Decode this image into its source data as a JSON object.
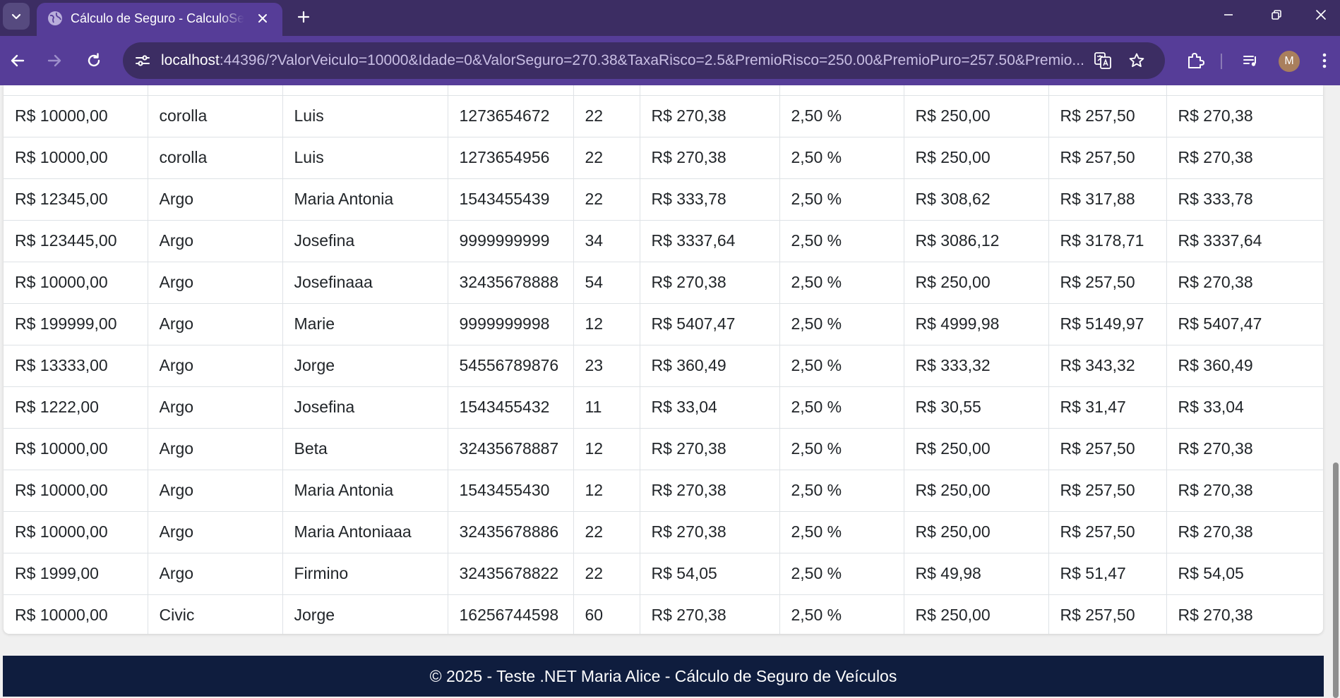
{
  "browser": {
    "tab_title": "Cálculo de Seguro - CalculoSeguro",
    "url_host": "localhost",
    "url_rest": ":44396/?ValorVeiculo=10000&Idade=0&ValorSeguro=270.38&TaxaRisco=2.5&PremioRisco=250.00&PremioPuro=257.50&Premio...",
    "avatar_letter": "M",
    "icons": [
      "chevron-down-icon",
      "globe-icon",
      "close-icon",
      "plus-icon",
      "minimize-icon",
      "restore-icon",
      "close-icon",
      "back-arrow-icon",
      "forward-arrow-icon",
      "reload-icon",
      "site-info-icon",
      "translate-icon",
      "star-icon",
      "extensions-icon",
      "media-icon",
      "more-vertical-icon"
    ]
  },
  "table": {
    "rows": [
      [
        "R$ 10000,00",
        "corolla",
        "Luis",
        "1273654672",
        "22",
        "R$ 270,38",
        "2,50 %",
        "R$ 250,00",
        "R$ 257,50",
        "R$ 270,38"
      ],
      [
        "R$ 10000,00",
        "corolla",
        "Luis",
        "1273654956",
        "22",
        "R$ 270,38",
        "2,50 %",
        "R$ 250,00",
        "R$ 257,50",
        "R$ 270,38"
      ],
      [
        "R$ 12345,00",
        "Argo",
        "Maria Antonia",
        "1543455439",
        "22",
        "R$ 333,78",
        "2,50 %",
        "R$ 308,62",
        "R$ 317,88",
        "R$ 333,78"
      ],
      [
        "R$ 123445,00",
        "Argo",
        "Josefina",
        "9999999999",
        "34",
        "R$ 3337,64",
        "2,50 %",
        "R$ 3086,12",
        "R$ 3178,71",
        "R$ 3337,64"
      ],
      [
        "R$ 10000,00",
        "Argo",
        "Josefinaaa",
        "32435678888",
        "54",
        "R$ 270,38",
        "2,50 %",
        "R$ 250,00",
        "R$ 257,50",
        "R$ 270,38"
      ],
      [
        "R$ 199999,00",
        "Argo",
        "Marie",
        "9999999998",
        "12",
        "R$ 5407,47",
        "2,50 %",
        "R$ 4999,98",
        "R$ 5149,97",
        "R$ 5407,47"
      ],
      [
        "R$ 13333,00",
        "Argo",
        "Jorge",
        "54556789876",
        "23",
        "R$ 360,49",
        "2,50 %",
        "R$ 333,32",
        "R$ 343,32",
        "R$ 360,49"
      ],
      [
        "R$ 1222,00",
        "Argo",
        "Josefina",
        "1543455432",
        "11",
        "R$ 33,04",
        "2,50 %",
        "R$ 30,55",
        "R$ 31,47",
        "R$ 33,04"
      ],
      [
        "R$ 10000,00",
        "Argo",
        "Beta",
        "32435678887",
        "12",
        "R$ 270,38",
        "2,50 %",
        "R$ 250,00",
        "R$ 257,50",
        "R$ 270,38"
      ],
      [
        "R$ 10000,00",
        "Argo",
        "Maria Antonia",
        "1543455430",
        "12",
        "R$ 270,38",
        "2,50 %",
        "R$ 250,00",
        "R$ 257,50",
        "R$ 270,38"
      ],
      [
        "R$ 10000,00",
        "Argo",
        "Maria Antoniaaa",
        "32435678886",
        "22",
        "R$ 270,38",
        "2,50 %",
        "R$ 250,00",
        "R$ 257,50",
        "R$ 270,38"
      ],
      [
        "R$ 1999,00",
        "Argo",
        "Firmino",
        "32435678822",
        "22",
        "R$ 54,05",
        "2,50 %",
        "R$ 49,98",
        "R$ 51,47",
        "R$ 54,05"
      ],
      [
        "R$ 10000,00",
        "Civic",
        "Jorge",
        "16256744598",
        "60",
        "R$ 270,38",
        "2,50 %",
        "R$ 250,00",
        "R$ 257,50",
        "R$ 270,38"
      ]
    ]
  },
  "footer": {
    "text": "© 2025 - Teste .NET Maria Alice - Cálculo de Seguro de Veículos"
  },
  "colors": {
    "tabbar": "#3c2d63",
    "toolbar": "#563d98",
    "footer": "#0f1d3e"
  }
}
